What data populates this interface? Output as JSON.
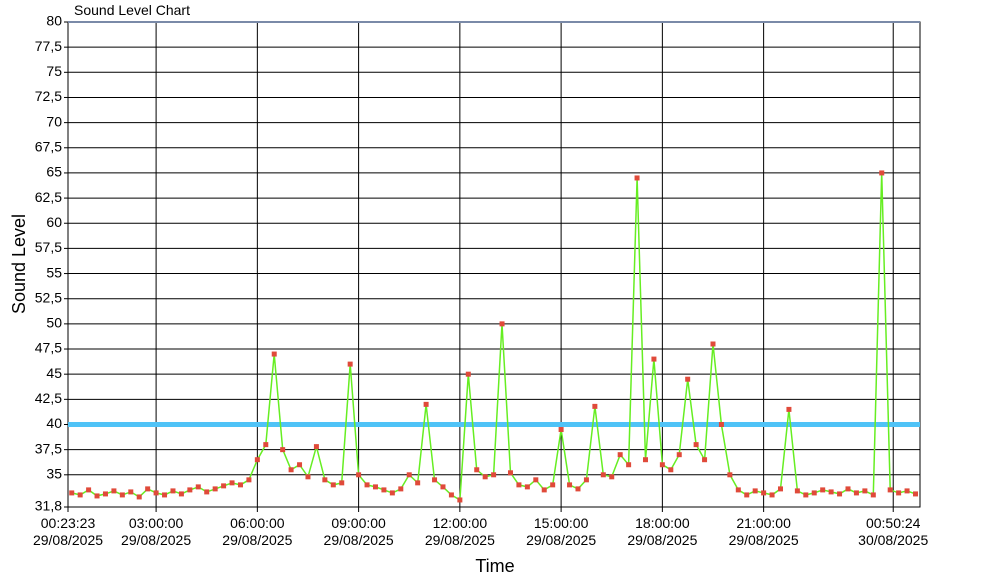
{
  "chart_data": {
    "type": "line",
    "title": "Sound Level Chart",
    "xlabel": "Time",
    "ylabel": "Sound Level",
    "grid": true,
    "threshold": {
      "value": 40,
      "color": "#4fc3f7"
    },
    "xlim": [
      "2025-08-29T00:23:23",
      "2025-08-30T01:38:00"
    ],
    "xticks": [
      {
        "value": "2025-08-29T00:23:23",
        "label": "00:23:23\n29/08/2025"
      },
      {
        "value": "2025-08-29T03:00:00",
        "label": "03:00:00\n29/08/2025"
      },
      {
        "value": "2025-08-29T06:00:00",
        "label": "06:00:00\n29/08/2025"
      },
      {
        "value": "2025-08-29T09:00:00",
        "label": "09:00:00\n29/08/2025"
      },
      {
        "value": "2025-08-29T12:00:00",
        "label": "12:00:00\n29/08/2025"
      },
      {
        "value": "2025-08-29T15:00:00",
        "label": "15:00:00\n29/08/2025"
      },
      {
        "value": "2025-08-29T18:00:00",
        "label": "18:00:00\n29/08/2025"
      },
      {
        "value": "2025-08-29T21:00:00",
        "label": "21:00:00\n29/08/2025"
      },
      {
        "value": "2025-08-30T00:50:24",
        "label": "00:50:24\n30/08/2025"
      }
    ],
    "ylim": [
      31.8,
      80
    ],
    "yticks": [
      {
        "value": 31.8,
        "label": "31,8"
      },
      35,
      {
        "value": 37.5,
        "label": "37,5"
      },
      40,
      {
        "value": 42.5,
        "label": "42,5"
      },
      45,
      {
        "value": 47.5,
        "label": "47,5"
      },
      50,
      {
        "value": 52.5,
        "label": "52,5"
      },
      55,
      {
        "value": 57.5,
        "label": "57,5"
      },
      60,
      {
        "value": 62.5,
        "label": "62,5"
      },
      65,
      {
        "value": 67.5,
        "label": "67,5"
      },
      70,
      {
        "value": 72.5,
        "label": "72,5"
      },
      75,
      {
        "value": 77.5,
        "label": "77,5"
      },
      80
    ],
    "x": [
      "2025-08-29T00:30",
      "2025-08-29T00:45",
      "2025-08-29T01:00",
      "2025-08-29T01:15",
      "2025-08-29T01:30",
      "2025-08-29T01:45",
      "2025-08-29T02:00",
      "2025-08-29T02:15",
      "2025-08-29T02:30",
      "2025-08-29T02:45",
      "2025-08-29T03:00",
      "2025-08-29T03:15",
      "2025-08-29T03:30",
      "2025-08-29T03:45",
      "2025-08-29T04:00",
      "2025-08-29T04:15",
      "2025-08-29T04:30",
      "2025-08-29T04:45",
      "2025-08-29T05:00",
      "2025-08-29T05:15",
      "2025-08-29T05:30",
      "2025-08-29T05:45",
      "2025-08-29T06:00",
      "2025-08-29T06:15",
      "2025-08-29T06:30",
      "2025-08-29T06:45",
      "2025-08-29T07:00",
      "2025-08-29T07:15",
      "2025-08-29T07:30",
      "2025-08-29T07:45",
      "2025-08-29T08:00",
      "2025-08-29T08:15",
      "2025-08-29T08:30",
      "2025-08-29T08:45",
      "2025-08-29T09:00",
      "2025-08-29T09:15",
      "2025-08-29T09:30",
      "2025-08-29T09:45",
      "2025-08-29T10:00",
      "2025-08-29T10:15",
      "2025-08-29T10:30",
      "2025-08-29T10:45",
      "2025-08-29T11:00",
      "2025-08-29T11:15",
      "2025-08-29T11:30",
      "2025-08-29T11:45",
      "2025-08-29T12:00",
      "2025-08-29T12:15",
      "2025-08-29T12:30",
      "2025-08-29T12:45",
      "2025-08-29T13:00",
      "2025-08-29T13:15",
      "2025-08-29T13:30",
      "2025-08-29T13:45",
      "2025-08-29T14:00",
      "2025-08-29T14:15",
      "2025-08-29T14:30",
      "2025-08-29T14:45",
      "2025-08-29T15:00",
      "2025-08-29T15:15",
      "2025-08-29T15:30",
      "2025-08-29T15:45",
      "2025-08-29T16:00",
      "2025-08-29T16:15",
      "2025-08-29T16:30",
      "2025-08-29T16:45",
      "2025-08-29T17:00",
      "2025-08-29T17:15",
      "2025-08-29T17:30",
      "2025-08-29T17:45",
      "2025-08-29T18:00",
      "2025-08-29T18:15",
      "2025-08-29T18:30",
      "2025-08-29T18:45",
      "2025-08-29T19:00",
      "2025-08-29T19:15",
      "2025-08-29T19:30",
      "2025-08-29T19:45",
      "2025-08-29T20:00",
      "2025-08-29T20:15",
      "2025-08-29T20:30",
      "2025-08-29T20:45",
      "2025-08-29T21:00",
      "2025-08-29T21:15",
      "2025-08-29T21:30",
      "2025-08-29T21:45",
      "2025-08-29T22:00",
      "2025-08-29T22:15",
      "2025-08-29T22:30",
      "2025-08-29T22:45",
      "2025-08-29T23:00",
      "2025-08-29T23:15",
      "2025-08-29T23:30",
      "2025-08-29T23:45",
      "2025-08-30T00:00",
      "2025-08-30T00:15",
      "2025-08-30T00:30",
      "2025-08-30T00:45",
      "2025-08-30T01:00",
      "2025-08-30T01:15",
      "2025-08-30T01:30"
    ],
    "series": [
      {
        "color": "#66ee22",
        "marker_color": "#e04a3a",
        "values": [
          33.2,
          33,
          33.5,
          32.9,
          33.1,
          33.4,
          33,
          33.3,
          32.8,
          33.6,
          33.2,
          33,
          33.4,
          33.1,
          33.5,
          33.8,
          33.3,
          33.6,
          33.9,
          34.2,
          34,
          34.5,
          36.5,
          38,
          47,
          37.5,
          35.5,
          36,
          34.8,
          37.8,
          34.5,
          34,
          34.2,
          46,
          35,
          34,
          33.8,
          33.5,
          33.2,
          33.6,
          35,
          34.2,
          42,
          34.5,
          33.8,
          33,
          32.5,
          45,
          35.5,
          34.8,
          35,
          50,
          35.2,
          34,
          33.8,
          34.5,
          33.5,
          34,
          39.5,
          34,
          33.6,
          34.5,
          41.8,
          35,
          34.8,
          37,
          36,
          64.5,
          36.5,
          46.5,
          36,
          35.5,
          37,
          44.5,
          38,
          36.5,
          48,
          40,
          35,
          33.5,
          33,
          33.4,
          33.2,
          33,
          33.6,
          41.5,
          33.4,
          33,
          33.2,
          33.5,
          33.3,
          33.1,
          33.6,
          33.2,
          33.4,
          33,
          65,
          33.5,
          33.2,
          33.4,
          33.1
        ]
      }
    ]
  }
}
